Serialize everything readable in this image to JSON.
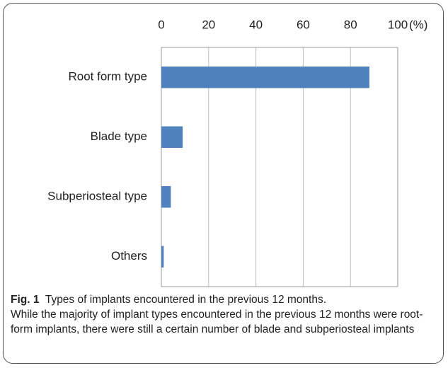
{
  "chart_data": {
    "type": "bar",
    "orientation": "horizontal",
    "categories": [
      "Root form type",
      "Blade type",
      "Subperiosteal type",
      "Others"
    ],
    "values": [
      88,
      9,
      4,
      1
    ],
    "color": "#4f81bd",
    "xlim": [
      0,
      100
    ],
    "xticks": [
      0,
      20,
      40,
      60,
      80,
      100
    ],
    "x_label": "(%)",
    "grid": true
  },
  "caption": {
    "label": "Fig. 1",
    "title": "Types of implants encountered in the previous 12 months.",
    "text": "While the majority of implant types encountered in the previous 12 months were root-form implants, there were still a certain number of blade and subperiosteal implants"
  }
}
